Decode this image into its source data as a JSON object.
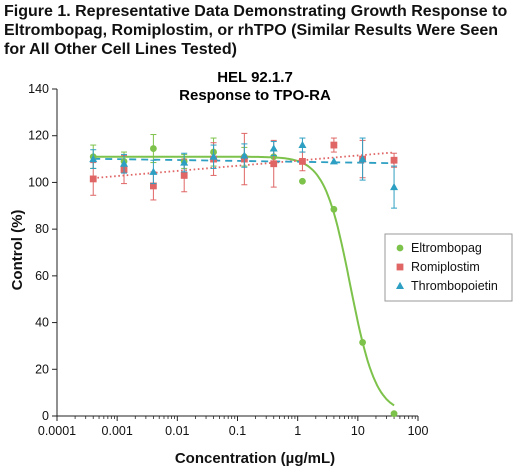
{
  "caption": "Figure 1. Representative Data Demonstrating Growth Response to Eltrombopag, Romiplostim, or rhTPO (Similar Results Were Seen for All Other Cell Lines Tested)",
  "chart_data": {
    "type": "scatter",
    "title_lines": [
      "HEL 92.1.7",
      "Response to TPO-RA"
    ],
    "xlabel": "Concentration (µg/mL)",
    "ylabel": "Control (%)",
    "xscale": "log",
    "xlim": [
      0.0001,
      100
    ],
    "ylim": [
      0,
      140
    ],
    "xticks": [
      0.0001,
      0.001,
      0.01,
      0.1,
      1,
      10,
      100
    ],
    "xtick_labels": [
      "0.0001",
      "0.001",
      "0.01",
      "0.1",
      "1",
      "10",
      "100"
    ],
    "yticks": [
      0,
      20,
      40,
      60,
      80,
      100,
      120,
      140
    ],
    "ytick_labels": [
      "0",
      "20",
      "40",
      "60",
      "80",
      "100",
      "120",
      "140"
    ],
    "grid": false,
    "legend_position": "center-right",
    "series": [
      {
        "name": "Eltrombopag",
        "color": "#7dc24b",
        "marker": "circle",
        "fit": "sigmoid",
        "fit_style": "solid",
        "points": [
          {
            "x": 0.0004,
            "y": 111,
            "err": 5
          },
          {
            "x": 0.0013,
            "y": 109,
            "err": 4
          },
          {
            "x": 0.004,
            "y": 114.5,
            "err": 6
          },
          {
            "x": 0.013,
            "y": 109,
            "err": 3
          },
          {
            "x": 0.04,
            "y": 113,
            "err": 6
          },
          {
            "x": 0.13,
            "y": 111,
            "err": 4
          },
          {
            "x": 0.4,
            "y": 111,
            "err": 3
          },
          {
            "x": 1.2,
            "y": 100.5,
            "err": 0
          },
          {
            "x": 4,
            "y": 88.5,
            "err": 0
          },
          {
            "x": 12,
            "y": 31.5,
            "err": 0
          },
          {
            "x": 40,
            "y": 1,
            "err": 0
          }
        ]
      },
      {
        "name": "Romiplostim",
        "color": "#e06666",
        "marker": "square",
        "fit": "linear",
        "fit_style": "dotted",
        "points": [
          {
            "x": 0.0004,
            "y": 101.5,
            "err": 7
          },
          {
            "x": 0.0013,
            "y": 105.5,
            "err": 6
          },
          {
            "x": 0.004,
            "y": 98.5,
            "err": 6
          },
          {
            "x": 0.013,
            "y": 103,
            "err": 7
          },
          {
            "x": 0.04,
            "y": 110,
            "err": 7
          },
          {
            "x": 0.13,
            "y": 110,
            "err": 11
          },
          {
            "x": 0.4,
            "y": 108,
            "err": 10
          },
          {
            "x": 1.2,
            "y": 109,
            "err": 4
          },
          {
            "x": 4,
            "y": 116,
            "err": 3
          },
          {
            "x": 12,
            "y": 110,
            "err": 8
          },
          {
            "x": 40,
            "y": 109.5,
            "err": 3
          }
        ]
      },
      {
        "name": "Thrombopoietin",
        "color": "#2d9fc2",
        "marker": "triangle",
        "fit": "linear",
        "fit_style": "dashed",
        "points": [
          {
            "x": 0.0004,
            "y": 110,
            "err": 4
          },
          {
            "x": 0.0013,
            "y": 108,
            "err": 4
          },
          {
            "x": 0.004,
            "y": 104.5,
            "err": 5
          },
          {
            "x": 0.013,
            "y": 108.5,
            "err": 4
          },
          {
            "x": 0.04,
            "y": 111,
            "err": 5
          },
          {
            "x": 0.13,
            "y": 111.5,
            "err": 5
          },
          {
            "x": 0.4,
            "y": 114.5,
            "err": 3
          },
          {
            "x": 1.2,
            "y": 116,
            "err": 3
          },
          {
            "x": 4,
            "y": 109,
            "err": 0
          },
          {
            "x": 12,
            "y": 110,
            "err": 9
          },
          {
            "x": 40,
            "y": 98,
            "err": 9
          }
        ]
      }
    ]
  }
}
